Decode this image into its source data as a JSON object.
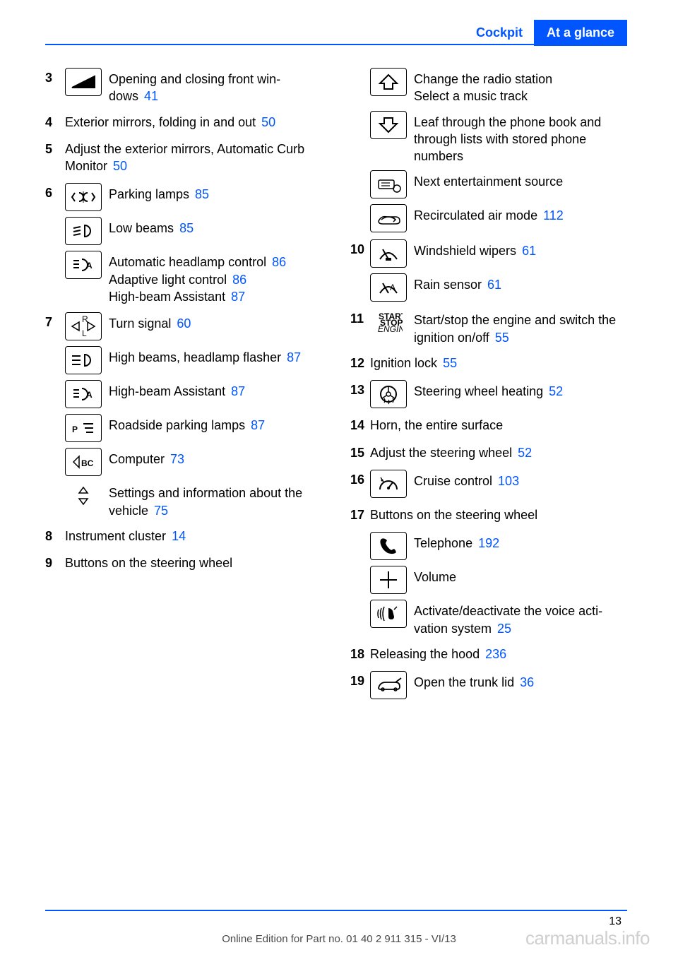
{
  "header": {
    "link_text": "Cockpit",
    "box_text": "At a glance"
  },
  "page_number": "13",
  "footer_line": "Online Edition for Part no. 01 40 2 911 315 - VI/13",
  "watermark": "carmanuals.info",
  "colors": {
    "accent": "#0055ff"
  },
  "left_items": [
    {
      "num": "3",
      "icon": "window",
      "lines": [
        {
          "text": "Opening and closing front win­dows",
          "ref": "41"
        }
      ]
    },
    {
      "num": "4",
      "full": true,
      "lines": [
        {
          "text": "Exterior mirrors, folding in and out",
          "ref": "50"
        }
      ]
    },
    {
      "num": "5",
      "full": true,
      "lines": [
        {
          "text": "Adjust the exterior mirrors, Automatic Curb Monitor",
          "ref": "50"
        }
      ]
    },
    {
      "num": "6",
      "stack": [
        {
          "icon": "parking-lamps",
          "text": "Parking lamps",
          "ref": "85"
        },
        {
          "icon": "low-beam",
          "text": "Low beams",
          "ref": "85"
        },
        {
          "icon": "auto-headlamp",
          "lines": [
            {
              "text": "Automatic headlamp con­trol",
              "ref": "86"
            },
            {
              "text": "Adaptive light control",
              "ref": "86"
            },
            {
              "text": "High-beam Assistant",
              "ref": "87"
            }
          ]
        }
      ]
    },
    {
      "num": "7",
      "stack": [
        {
          "icon": "turn-signal",
          "text": "Turn signal",
          "ref": "60"
        },
        {
          "icon": "high-beam",
          "text": "High beams, head­lamp flasher",
          "ref": "87"
        },
        {
          "icon": "auto-headlamp",
          "text": "High-beam Assistant",
          "ref": "87"
        },
        {
          "icon": "roadside-parking",
          "text": "Roadside parking lamps",
          "ref": "87"
        },
        {
          "icon": "computer",
          "text": "Computer",
          "ref": "73"
        },
        {
          "icon": "updown",
          "text": "Settings and information about the vehicle",
          "ref": "75"
        }
      ]
    },
    {
      "num": "8",
      "full": true,
      "lines": [
        {
          "text": "Instrument cluster",
          "ref": "14"
        }
      ]
    },
    {
      "num": "9",
      "full": true,
      "lines": [
        {
          "text": "Buttons on the steering wheel"
        }
      ]
    }
  ],
  "right_items": [
    {
      "num": "",
      "stack": [
        {
          "icon": "arrow-up",
          "lines": [
            {
              "text": "Change the radio station"
            },
            {
              "text": "Select a music track"
            }
          ]
        },
        {
          "icon": "arrow-down",
          "text": "Leaf through the phone book and through lists with stored phone numbers"
        },
        {
          "icon": "src",
          "text": "Next entertainment source"
        },
        {
          "icon": "recirc",
          "text": "Recirculated air mode",
          "ref": "112"
        }
      ]
    },
    {
      "num": "10",
      "stack": [
        {
          "icon": "wipers",
          "text": "Windshield wipers",
          "ref": "61"
        },
        {
          "icon": "rain-sensor",
          "text": "Rain sensor",
          "ref": "61"
        }
      ]
    },
    {
      "num": "11",
      "icon": "startstop",
      "lines": [
        {
          "text": "Start/stop the engine and switch the ignition on/off",
          "ref": "55"
        }
      ]
    },
    {
      "num": "12",
      "full": true,
      "lines": [
        {
          "text": "Ignition lock",
          "ref": "55"
        }
      ]
    },
    {
      "num": "13",
      "icon": "wheel-heat",
      "lines": [
        {
          "text": "Steering wheel heating",
          "ref": "52"
        }
      ]
    },
    {
      "num": "14",
      "full": true,
      "lines": [
        {
          "text": "Horn, the entire surface"
        }
      ]
    },
    {
      "num": "15",
      "full": true,
      "lines": [
        {
          "text": "Adjust the steering wheel",
          "ref": "52"
        }
      ]
    },
    {
      "num": "16",
      "icon": "cruise",
      "lines": [
        {
          "text": "Cruise control",
          "ref": "103"
        }
      ]
    },
    {
      "num": "17",
      "full": true,
      "lines": [
        {
          "text": "Buttons on the steering wheel"
        }
      ]
    },
    {
      "num": "",
      "stack": [
        {
          "icon": "phone",
          "text": "Telephone",
          "ref": "192"
        },
        {
          "icon": "volume",
          "text": "Volume"
        },
        {
          "icon": "voice",
          "text": "Activate/deactivate the voice acti­vation system",
          "ref": "25"
        }
      ]
    },
    {
      "num": "18",
      "full": true,
      "lines": [
        {
          "text": "Releasing the hood",
          "ref": "236"
        }
      ]
    },
    {
      "num": "19",
      "icon": "trunk",
      "lines": [
        {
          "text": "Open the trunk lid",
          "ref": "36"
        }
      ]
    }
  ]
}
